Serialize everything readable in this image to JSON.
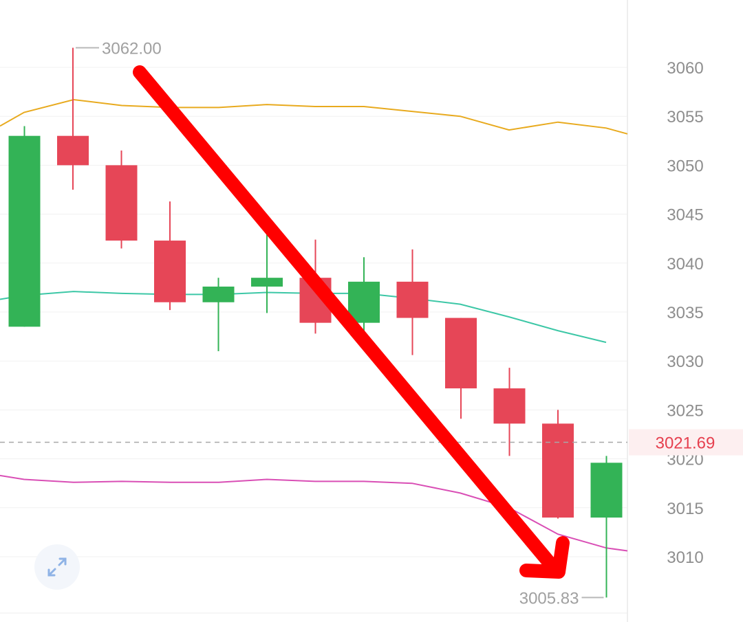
{
  "chart_data": {
    "type": "candlestick",
    "ylim": [
      3005,
      3063
    ],
    "yticks": [
      3060,
      3055,
      3050,
      3045,
      3040,
      3035,
      3030,
      3025,
      3020,
      3015,
      3010
    ],
    "ytick_labels": [
      "3060",
      "3055",
      "3050",
      "3045",
      "3040",
      "3035",
      "3030",
      "3025",
      "3020",
      "3015",
      "3010"
    ],
    "grid": true,
    "candles": [
      {
        "open": 3033.5,
        "high": 3054.0,
        "low": 3033.5,
        "close": 3053.0,
        "color": "up"
      },
      {
        "open": 3053.0,
        "high": 3062.0,
        "low": 3047.5,
        "close": 3050.0,
        "color": "down"
      },
      {
        "open": 3050.0,
        "high": 3051.5,
        "low": 3041.5,
        "close": 3042.3,
        "color": "down"
      },
      {
        "open": 3042.3,
        "high": 3046.3,
        "low": 3035.2,
        "close": 3036.0,
        "color": "down"
      },
      {
        "open": 3036.0,
        "high": 3038.5,
        "low": 3031.0,
        "close": 3037.6,
        "color": "up"
      },
      {
        "open": 3037.6,
        "high": 3043.0,
        "low": 3034.9,
        "close": 3038.5,
        "color": "up"
      },
      {
        "open": 3038.5,
        "high": 3042.4,
        "low": 3032.8,
        "close": 3033.9,
        "color": "down"
      },
      {
        "open": 3033.9,
        "high": 3040.6,
        "low": 3033.0,
        "close": 3038.1,
        "color": "up"
      },
      {
        "open": 3038.1,
        "high": 3041.4,
        "low": 3030.6,
        "close": 3034.4,
        "color": "down"
      },
      {
        "open": 3034.4,
        "high": 3034.4,
        "low": 3024.1,
        "close": 3027.2,
        "color": "down"
      },
      {
        "open": 3027.2,
        "high": 3029.3,
        "low": 3020.3,
        "close": 3023.6,
        "color": "down"
      },
      {
        "open": 3023.6,
        "high": 3025.0,
        "low": 3013.9,
        "close": 3014.0,
        "color": "down"
      },
      {
        "open": 3014.0,
        "high": 3020.3,
        "low": 3005.83,
        "close": 3019.6,
        "color": "up"
      }
    ],
    "series": [
      {
        "values": [
          3054,
          3055.4,
          3056.7,
          3056.1,
          3055.9,
          3055.9,
          3056.2,
          3056.0,
          3056.0,
          3055.5,
          3055.0,
          3053.6,
          3054.4,
          3053.8,
          3053.2
        ],
        "color": "#e8aa1e"
      },
      {
        "values": [
          3036.3,
          3036.7,
          3037.1,
          3036.9,
          3036.8,
          3036.8,
          3037.0,
          3036.9,
          3036.9,
          3036.4,
          3035.8,
          3034.5,
          3033.1,
          3031.9
        ],
        "color": "#3cc7a6"
      },
      {
        "values": [
          3018.3,
          3017.9,
          3017.6,
          3017.7,
          3017.6,
          3017.6,
          3017.9,
          3017.7,
          3017.7,
          3017.5,
          3016.5,
          3015.0,
          3012.3,
          3010.9,
          3010.6
        ],
        "color": "#d94eb5"
      }
    ],
    "current_price": 3021.69,
    "annotations": {
      "high_label": "3062.00",
      "low_label": "3005.83",
      "current_label": "3021.69"
    },
    "colors": {
      "up": "#33b356",
      "down": "#e64657",
      "arrow": "#ff0000"
    }
  },
  "icons": {
    "expand": "expand-icon"
  }
}
